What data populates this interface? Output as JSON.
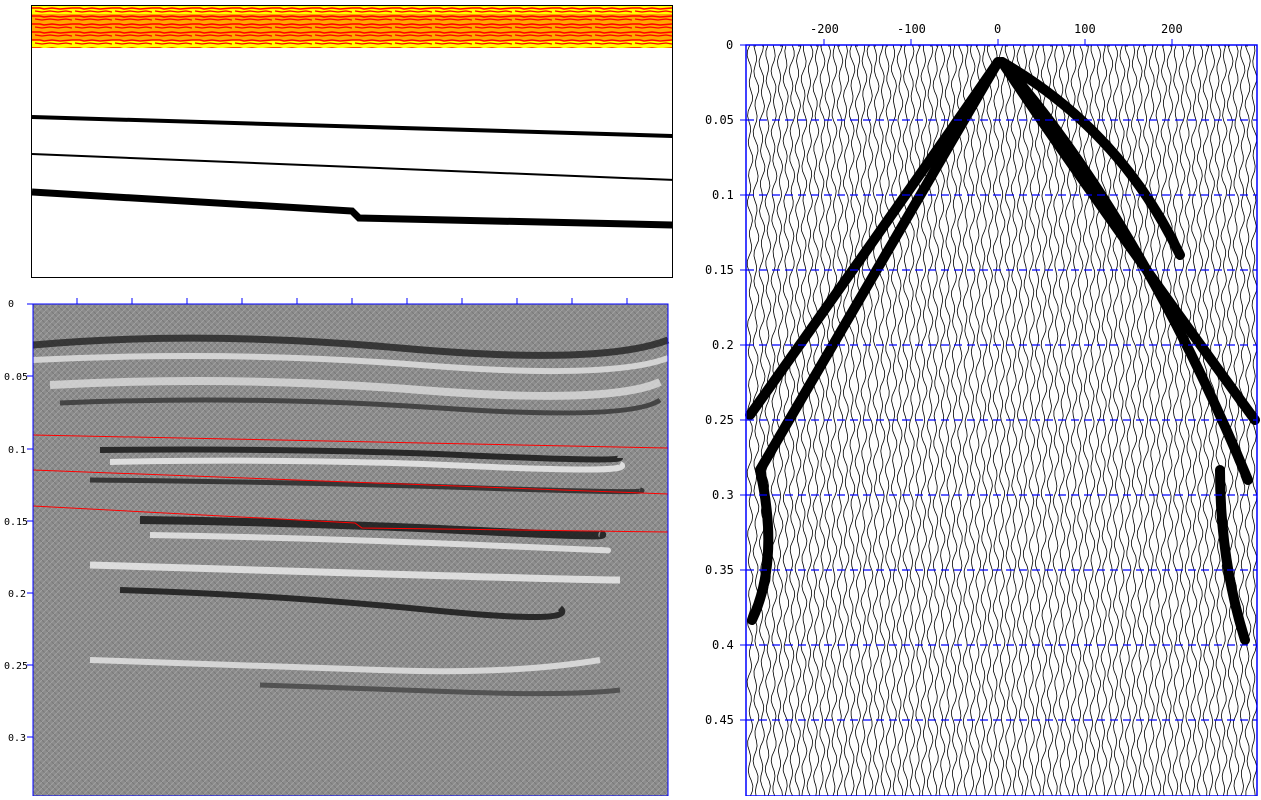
{
  "horizon_panel": {
    "colors": {
      "band_background": "#ffff00",
      "band_texture": "#ff0000",
      "horizon": "#000000",
      "frame": "#000000"
    },
    "horizons": [
      "horizon-1",
      "horizon-2",
      "horizon-3"
    ]
  },
  "section_panel": {
    "y_ticks": [
      "0",
      "0.05",
      "0.1",
      "0.15",
      "0.2",
      "0.25",
      "0.3"
    ],
    "colors": {
      "frame": "#0000ff",
      "overlay_lines": "#ff0000",
      "background": "#888888"
    }
  },
  "gather_panel": {
    "x_ticks": [
      "-200",
      "-100",
      "0",
      "100",
      "200"
    ],
    "y_ticks": [
      "0",
      "0.05",
      "0.1",
      "0.15",
      "0.2",
      "0.25",
      "0.3",
      "0.35",
      "0.4",
      "0.45"
    ],
    "colors": {
      "frame": "#0000ff",
      "gridline": "#0000ff",
      "trace": "#000000"
    }
  }
}
